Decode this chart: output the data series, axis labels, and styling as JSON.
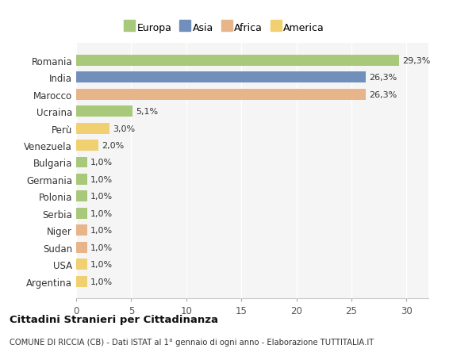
{
  "countries": [
    "Romania",
    "India",
    "Marocco",
    "Ucraina",
    "Perù",
    "Venezuela",
    "Bulgaria",
    "Germania",
    "Polonia",
    "Serbia",
    "Niger",
    "Sudan",
    "USA",
    "Argentina"
  ],
  "values": [
    29.3,
    26.3,
    26.3,
    5.1,
    3.0,
    2.0,
    1.0,
    1.0,
    1.0,
    1.0,
    1.0,
    1.0,
    1.0,
    1.0
  ],
  "labels": [
    "29,3%",
    "26,3%",
    "26,3%",
    "5,1%",
    "3,0%",
    "2,0%",
    "1,0%",
    "1,0%",
    "1,0%",
    "1,0%",
    "1,0%",
    "1,0%",
    "1,0%",
    "1,0%"
  ],
  "continents": [
    "Europa",
    "Asia",
    "Africa",
    "Europa",
    "America",
    "America",
    "Europa",
    "Europa",
    "Europa",
    "Europa",
    "Africa",
    "Africa",
    "America",
    "America"
  ],
  "colors": {
    "Europa": "#a8c87a",
    "Asia": "#7090bb",
    "Africa": "#e8b48a",
    "America": "#f0d070"
  },
  "legend_order": [
    "Europa",
    "Asia",
    "Africa",
    "America"
  ],
  "title": "Cittadini Stranieri per Cittadinanza",
  "subtitle": "COMUNE DI RICCIA (CB) - Dati ISTAT al 1° gennaio di ogni anno - Elaborazione TUTTITALIA.IT",
  "xlim": [
    0,
    32
  ],
  "xticks": [
    0,
    5,
    10,
    15,
    20,
    25,
    30
  ],
  "background_color": "#ffffff",
  "plot_bg_color": "#f5f5f5",
  "grid_color": "#ffffff"
}
